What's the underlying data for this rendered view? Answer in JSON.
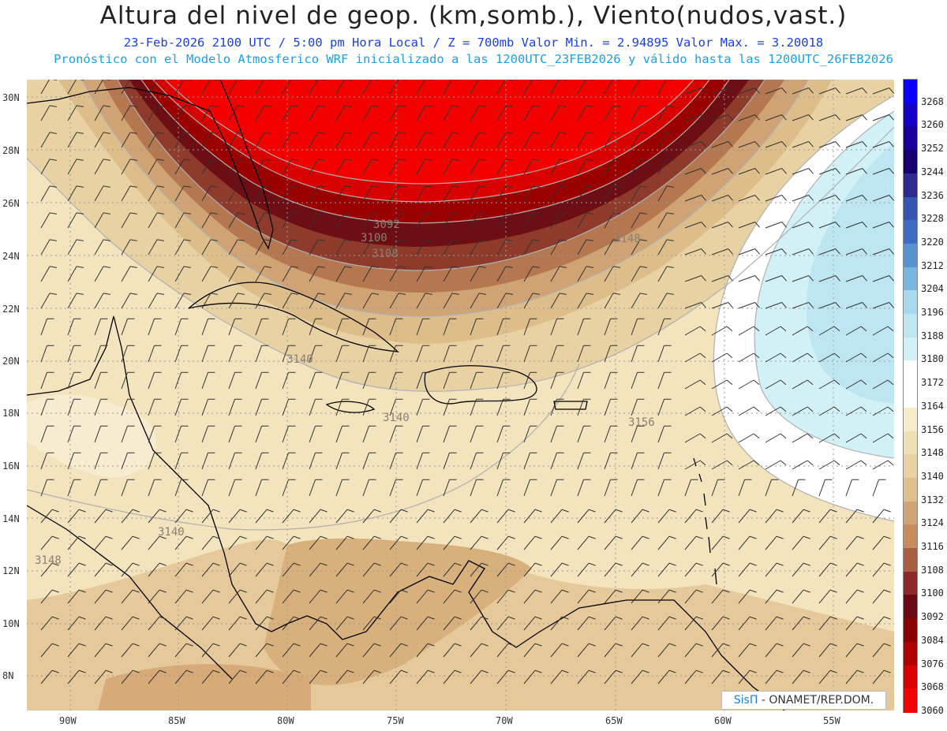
{
  "header": {
    "title": "Altura del nivel de geop. (km,somb.), Viento(nudos,vast.)",
    "subtitle_1": "23-Feb-2026  2100 UTC / 5:00 pm Hora Local / Z = 700mb    Valor Min. = 2.94895  Valor Max. = 3.20018",
    "subtitle_2": "Pronóstico con el Modelo Atmosferico WRF inicializado a las 1200UTC_23FEB2026 y válido hasta las  1200UTC_26FEB2026"
  },
  "map": {
    "lon_range": [
      -91.8,
      -52.4
    ],
    "lat_range": [
      6.8,
      30.5
    ],
    "lat_labels": [
      "30N",
      "28N",
      "26N",
      "24N",
      "22N",
      "20N",
      "18N",
      "16N",
      "14N",
      "12N",
      "10N",
      "8N"
    ],
    "lat_values": [
      30,
      28,
      26,
      24,
      22,
      20,
      18,
      16,
      14,
      12,
      10,
      8
    ],
    "lon_labels": [
      "90W",
      "85W",
      "80W",
      "75W",
      "70W",
      "65W",
      "60W",
      "55W"
    ],
    "lon_values": [
      -90,
      -85,
      -80,
      -75,
      -70,
      -65,
      -60,
      -55
    ],
    "contour_labels": [
      {
        "text": "3092",
        "lon": -75.7,
        "lat": 25.4
      },
      {
        "text": "3100",
        "lon": -76.5,
        "lat": 24.8
      },
      {
        "text": "3108",
        "lon": -76.3,
        "lat": 24.1
      },
      {
        "text": "3148",
        "lon": -66.5,
        "lat": 24.5
      },
      {
        "text": "3140",
        "lon": -80.0,
        "lat": 20.0
      },
      {
        "text": "3140",
        "lon": -75.6,
        "lat": 17.8
      },
      {
        "text": "3140",
        "lon": -85.6,
        "lat": 13.4
      },
      {
        "text": "3148",
        "lon": -90.5,
        "lat": 12.5
      },
      {
        "text": "3156",
        "lon": -64.8,
        "lat": 17.7
      }
    ]
  },
  "colorbar": {
    "labels": [
      "3268",
      "3260",
      "3252",
      "3244",
      "3236",
      "3228",
      "3220",
      "3212",
      "3204",
      "3196",
      "3188",
      "3180",
      "3172",
      "3164",
      "3156",
      "3148",
      "3140",
      "3132",
      "3124",
      "3116",
      "3108",
      "3100",
      "3092",
      "3084",
      "3076",
      "3068",
      "3060"
    ],
    "colors": [
      "#0a00ff",
      "#1400c8",
      "#1c009a",
      "#160070",
      "#2e2a8e",
      "#3456b0",
      "#3c6ec0",
      "#5a92d0",
      "#7ab4e0",
      "#a6d8ee",
      "#bde6f2",
      "#d2f1f7",
      "#ffffff",
      "#ffffff",
      "#f6ebcb",
      "#efdfb4",
      "#e9d1a2",
      "#dfbf8c",
      "#d1a474",
      "#c68c5d",
      "#a85f40",
      "#8c2a2a",
      "#6a0a14",
      "#8a0000",
      "#b20000",
      "#d80000",
      "#f50000"
    ]
  },
  "credit": {
    "brand": "SisΠ",
    "org": " - ONAMET/REP.DOM."
  }
}
